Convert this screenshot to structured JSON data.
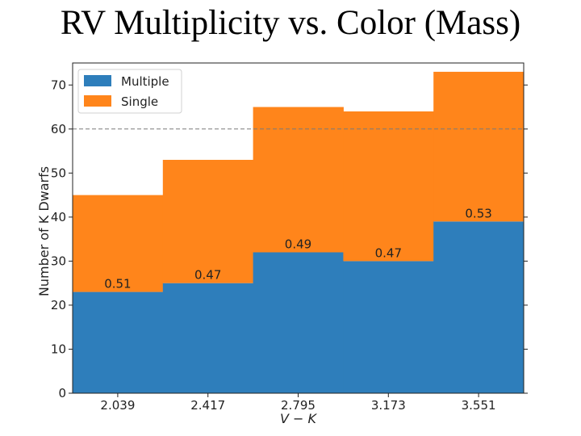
{
  "slide": {
    "title": "RV Multiplicity vs. Color (Mass)"
  },
  "chart_data": {
    "type": "bar",
    "stacked": true,
    "categories": [
      "2.039",
      "2.417",
      "2.795",
      "3.173",
      "3.551"
    ],
    "series": [
      {
        "name": "Multiple",
        "values": [
          23,
          25,
          32,
          30,
          39
        ],
        "color": "#2e7ebb"
      },
      {
        "name": "Single",
        "values": [
          22,
          28,
          33,
          34,
          34
        ],
        "color": "#ff851b"
      }
    ],
    "bar_labels": [
      "0.51",
      "0.47",
      "0.49",
      "0.47",
      "0.53"
    ],
    "xlabel_main": "V",
    "xlabel_sep": " − ",
    "xlabel_tail": "K",
    "ylabel": "Number of K Dwarfs",
    "ylim": [
      0,
      75
    ],
    "yticks": [
      0,
      10,
      20,
      30,
      40,
      50,
      60,
      70
    ],
    "reference_line": {
      "y": 60,
      "style": "dashed"
    },
    "legend": {
      "position": "top-left",
      "entries": [
        "Multiple",
        "Single"
      ]
    },
    "grid": false
  }
}
